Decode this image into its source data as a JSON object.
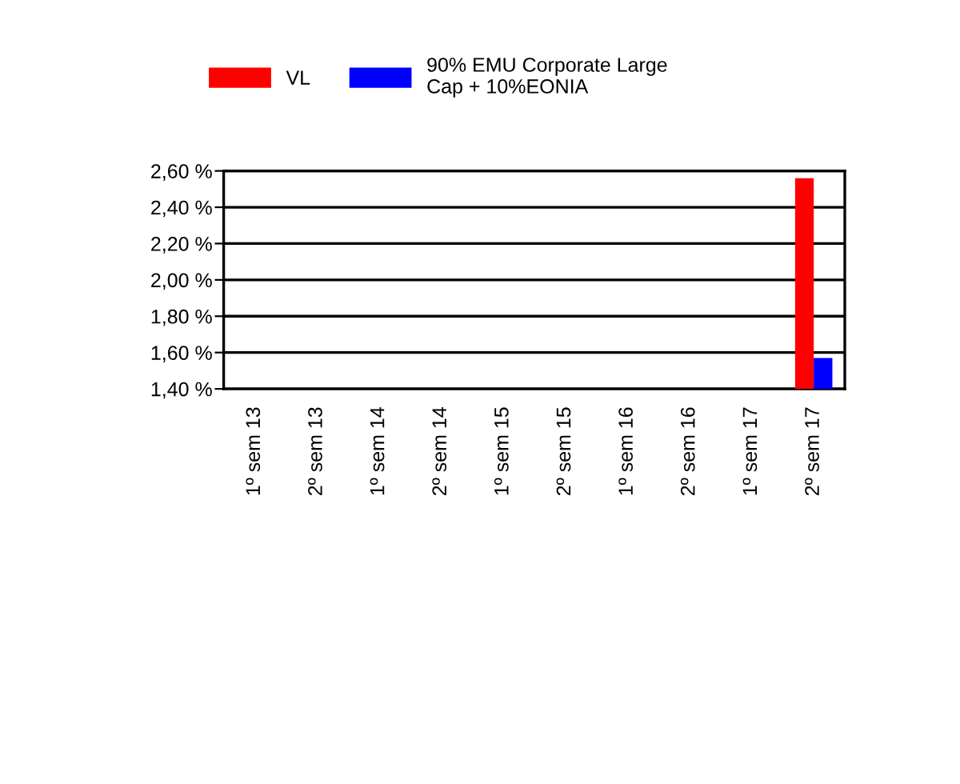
{
  "chart_data": {
    "type": "bar",
    "categories": [
      "1º sem 13",
      "2º sem 13",
      "1º sem 14",
      "2º sem 14",
      "1º sem 15",
      "2º sem 15",
      "1º sem 16",
      "2º sem 16",
      "1º sem 17",
      "2º sem 17"
    ],
    "series": [
      {
        "name": "VL",
        "color": "#ff0000",
        "values": [
          null,
          null,
          null,
          null,
          null,
          null,
          null,
          null,
          null,
          2.56
        ]
      },
      {
        "name": "90% EMU Corporate Large Cap + 10%EONIA",
        "color": "#0000ff",
        "values": [
          null,
          null,
          null,
          null,
          null,
          null,
          null,
          null,
          null,
          1.57
        ]
      }
    ],
    "ylim": [
      1.4,
      2.6
    ],
    "yticks": [
      {
        "value": 1.4,
        "label": "1,40 %"
      },
      {
        "value": 1.6,
        "label": "1,60 %"
      },
      {
        "value": 1.8,
        "label": "1,80 %"
      },
      {
        "value": 2.0,
        "label": "2,00 %"
      },
      {
        "value": 2.2,
        "label": "2,20 %"
      },
      {
        "value": 2.4,
        "label": "2,40 %"
      },
      {
        "value": 2.6,
        "label": "2,60 %"
      }
    ],
    "grid": "y",
    "legend": "top"
  }
}
